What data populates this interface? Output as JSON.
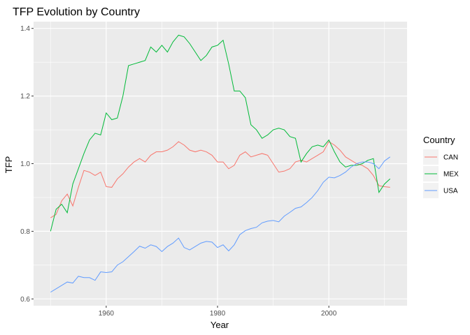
{
  "chart_data": {
    "type": "line",
    "title": "TFP Evolution by Country",
    "xlabel": "Year",
    "ylabel": "TFP",
    "xlim": [
      1946.95,
      2014.05
    ],
    "ylim": [
      0.58,
      1.42
    ],
    "x_ticks": [
      1960,
      1980,
      2000
    ],
    "x_tick_labels": [
      "1960",
      "1980",
      "2000"
    ],
    "x_minor_ticks": [
      1950,
      1970,
      1990,
      2010
    ],
    "y_ticks": [
      0.6,
      0.8,
      1.0,
      1.2,
      1.4
    ],
    "y_tick_labels": [
      "0.6",
      "0.8",
      "1.0",
      "1.2",
      "1.4"
    ],
    "y_minor_ticks": [
      0.7,
      0.9,
      1.1,
      1.3
    ],
    "grid": true,
    "legend": {
      "title": "Country",
      "position": "right"
    },
    "x": [
      1950,
      1951,
      1952,
      1953,
      1954,
      1955,
      1956,
      1957,
      1958,
      1959,
      1960,
      1961,
      1962,
      1963,
      1964,
      1965,
      1966,
      1967,
      1968,
      1969,
      1970,
      1971,
      1972,
      1973,
      1974,
      1975,
      1976,
      1977,
      1978,
      1979,
      1980,
      1981,
      1982,
      1983,
      1984,
      1985,
      1986,
      1987,
      1988,
      1989,
      1990,
      1991,
      1992,
      1993,
      1994,
      1995,
      1996,
      1997,
      1998,
      1999,
      2000,
      2001,
      2002,
      2003,
      2004,
      2005,
      2006,
      2007,
      2008,
      2009,
      2010,
      2011
    ],
    "series": [
      {
        "name": "CAN",
        "color": "#F8766D",
        "values": [
          0.84,
          0.85,
          0.89,
          0.91,
          0.875,
          0.93,
          0.98,
          0.975,
          0.965,
          0.975,
          0.932,
          0.93,
          0.955,
          0.97,
          0.99,
          1.005,
          1.015,
          1.005,
          1.025,
          1.035,
          1.035,
          1.04,
          1.05,
          1.065,
          1.055,
          1.04,
          1.035,
          1.04,
          1.035,
          1.025,
          1.005,
          1.005,
          0.985,
          0.995,
          1.025,
          1.035,
          1.02,
          1.025,
          1.03,
          1.025,
          1.0,
          0.975,
          0.978,
          0.985,
          1.005,
          1.01,
          1.005,
          1.015,
          1.025,
          1.035,
          1.065,
          1.055,
          1.04,
          1.02,
          1.01,
          1.0,
          0.995,
          0.985,
          0.965,
          0.935,
          0.932,
          0.93
        ]
      },
      {
        "name": "MEX",
        "color": "#00BA38",
        "values": [
          0.8,
          0.865,
          0.88,
          0.855,
          0.94,
          0.985,
          1.03,
          1.07,
          1.09,
          1.085,
          1.15,
          1.13,
          1.135,
          1.2,
          1.29,
          1.295,
          1.3,
          1.305,
          1.345,
          1.33,
          1.35,
          1.33,
          1.36,
          1.38,
          1.375,
          1.355,
          1.33,
          1.305,
          1.32,
          1.345,
          1.35,
          1.365,
          1.295,
          1.215,
          1.215,
          1.195,
          1.115,
          1.1,
          1.075,
          1.085,
          1.1,
          1.105,
          1.1,
          1.08,
          1.075,
          1.005,
          1.03,
          1.05,
          1.055,
          1.05,
          1.07,
          1.035,
          1.005,
          0.99,
          0.995,
          0.995,
          1.0,
          1.01,
          1.015,
          0.915,
          0.94,
          0.955
        ]
      },
      {
        "name": "USA",
        "color": "#619CFF",
        "values": [
          0.62,
          0.63,
          0.64,
          0.65,
          0.647,
          0.667,
          0.663,
          0.663,
          0.655,
          0.68,
          0.678,
          0.68,
          0.7,
          0.71,
          0.725,
          0.74,
          0.756,
          0.75,
          0.76,
          0.755,
          0.74,
          0.755,
          0.765,
          0.78,
          0.752,
          0.745,
          0.755,
          0.765,
          0.77,
          0.768,
          0.752,
          0.76,
          0.742,
          0.76,
          0.79,
          0.802,
          0.808,
          0.812,
          0.825,
          0.83,
          0.832,
          0.828,
          0.845,
          0.856,
          0.868,
          0.872,
          0.885,
          0.9,
          0.92,
          0.945,
          0.96,
          0.958,
          0.965,
          0.975,
          0.99,
          1.0,
          1.005,
          1.005,
          1.0,
          0.985,
          1.008,
          1.02
        ]
      }
    ]
  }
}
